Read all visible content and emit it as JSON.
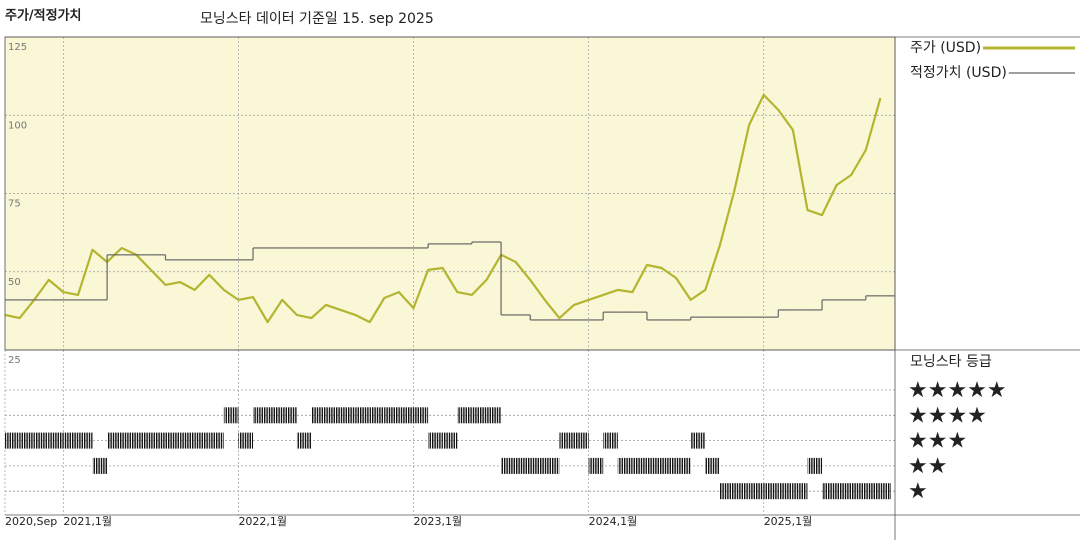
{
  "chart_data": [
    {
      "type": "line",
      "title": "주가/적정가치",
      "subtitle": "모닝스타 데이터 기준일 15. sep 2025",
      "x": [
        "2020-09",
        "2020-10",
        "2020-11",
        "2020-12",
        "2021-01",
        "2021-02",
        "2021-03",
        "2021-04",
        "2021-05",
        "2021-06",
        "2021-07",
        "2021-08",
        "2021-09",
        "2021-10",
        "2021-11",
        "2021-12",
        "2022-01",
        "2022-02",
        "2022-03",
        "2022-04",
        "2022-05",
        "2022-06",
        "2022-07",
        "2022-08",
        "2022-09",
        "2022-10",
        "2022-11",
        "2022-12",
        "2023-01",
        "2023-02",
        "2023-03",
        "2023-04",
        "2023-05",
        "2023-06",
        "2023-07",
        "2023-08",
        "2023-09",
        "2023-10",
        "2023-11",
        "2023-12",
        "2024-01",
        "2024-02",
        "2024-03",
        "2024-04",
        "2024-05",
        "2024-06",
        "2024-07",
        "2024-08",
        "2024-09",
        "2024-10",
        "2024-11",
        "2024-12",
        "2025-01",
        "2025-02",
        "2025-03",
        "2025-04",
        "2025-05",
        "2025-06",
        "2025-07",
        "2025-08",
        "2025-09"
      ],
      "series": [
        {
          "name": "주가 (USD)",
          "color": "#b3b530",
          "style": "line",
          "values": [
            36.2,
            35.2,
            41,
            47.4,
            43.5,
            42.6,
            57,
            53.1,
            57.6,
            55.4,
            50.6,
            45.8,
            46.7,
            44.2,
            49,
            44.2,
            41,
            41.9,
            33.9,
            41,
            36.2,
            35.2,
            39.4,
            37.8,
            36.2,
            33.9,
            41.6,
            43.5,
            38.4,
            50.6,
            51.2,
            43.5,
            42.6,
            47.4,
            55.4,
            53.1,
            47.4,
            41,
            35.2,
            39.4,
            41,
            42.6,
            44.2,
            43.5,
            52.2,
            51.2,
            48,
            41,
            44.2,
            58.5,
            76.1,
            96.9,
            106.5,
            101.7,
            95.3,
            69.7,
            68.1,
            77.7,
            80.9,
            88.9,
            105.5
          ]
        },
        {
          "name": "적정가치 (USD)",
          "color": "#666666",
          "style": "step",
          "values": [
            41,
            41,
            41,
            41,
            41,
            41,
            41,
            55.4,
            55.4,
            55.4,
            55.4,
            53.8,
            53.8,
            53.8,
            53.8,
            53.8,
            53.8,
            57.6,
            57.6,
            57.6,
            57.6,
            57.6,
            57.6,
            57.6,
            57.6,
            57.6,
            57.6,
            57.6,
            57.6,
            58.9,
            58.9,
            58.9,
            59.5,
            59.5,
            36.2,
            36.2,
            34.6,
            34.6,
            34.6,
            34.6,
            34.6,
            37.1,
            37.1,
            37.1,
            34.6,
            34.6,
            34.6,
            35.5,
            35.5,
            35.5,
            35.5,
            35.5,
            35.5,
            37.8,
            37.8,
            37.8,
            41,
            41,
            41,
            42.3,
            42.3
          ]
        }
      ],
      "xlim": [
        "2020-09",
        "2025-10"
      ],
      "xticks": [
        {
          "value": "2020-09",
          "label": "2020,Sep"
        },
        {
          "value": "2021-01",
          "label": "2021,1월"
        },
        {
          "value": "2022-01",
          "label": "2022,1월"
        },
        {
          "value": "2023-01",
          "label": "2023,1월"
        },
        {
          "value": "2024-01",
          "label": "2024,1월"
        },
        {
          "value": "2025-01",
          "label": "2025,1월"
        }
      ],
      "ylim": [
        25,
        125
      ],
      "yticks": [
        25,
        50,
        75,
        100,
        125
      ],
      "grid": true,
      "background": "#faf7d6"
    },
    {
      "type": "rating",
      "title": "모닝스타 등급",
      "categories": [
        "★★★★★",
        "★★★★",
        "★★★",
        "★★",
        "★"
      ],
      "x": [
        "2020-09",
        "2020-10",
        "2020-11",
        "2020-12",
        "2021-01",
        "2021-02",
        "2021-03",
        "2021-04",
        "2021-05",
        "2021-06",
        "2021-07",
        "2021-08",
        "2021-09",
        "2021-10",
        "2021-11",
        "2021-12",
        "2022-01",
        "2022-02",
        "2022-03",
        "2022-04",
        "2022-05",
        "2022-06",
        "2022-07",
        "2022-08",
        "2022-09",
        "2022-10",
        "2022-11",
        "2022-12",
        "2023-01",
        "2023-02",
        "2023-03",
        "2023-04",
        "2023-05",
        "2023-06",
        "2023-07",
        "2023-08",
        "2023-09",
        "2023-10",
        "2023-11",
        "2023-12",
        "2024-01",
        "2024-02",
        "2024-03",
        "2024-04",
        "2024-05",
        "2024-06",
        "2024-07",
        "2024-08",
        "2024-09",
        "2024-10",
        "2024-11",
        "2024-12",
        "2025-01",
        "2025-02",
        "2025-03",
        "2025-04",
        "2025-05",
        "2025-06",
        "2025-07",
        "2025-08",
        "2025-09"
      ],
      "values": [
        3,
        3,
        3,
        3,
        3,
        3,
        2,
        3,
        3,
        3,
        3,
        3,
        3,
        3,
        3,
        4,
        3,
        4,
        4,
        4,
        3,
        4,
        4,
        4,
        4,
        4,
        4,
        4,
        4,
        3,
        3,
        4,
        4,
        4,
        2,
        2,
        2,
        2,
        3,
        3,
        2,
        3,
        2,
        2,
        2,
        2,
        2,
        3,
        2,
        1,
        1,
        1,
        1,
        1,
        1,
        2,
        1,
        1,
        1,
        1,
        1
      ],
      "color": "#111111",
      "xlim": [
        "2020-09",
        "2025-10"
      ],
      "xticks": [
        {
          "value": "2020-09",
          "label": "2020,Sep"
        },
        {
          "value": "2021-01",
          "label": "2021,1월"
        },
        {
          "value": "2022-01",
          "label": "2022,1월"
        },
        {
          "value": "2023-01",
          "label": "2023,1월"
        },
        {
          "value": "2024-01",
          "label": "2024,1월"
        },
        {
          "value": "2025-01",
          "label": "2025,1월"
        }
      ]
    }
  ]
}
